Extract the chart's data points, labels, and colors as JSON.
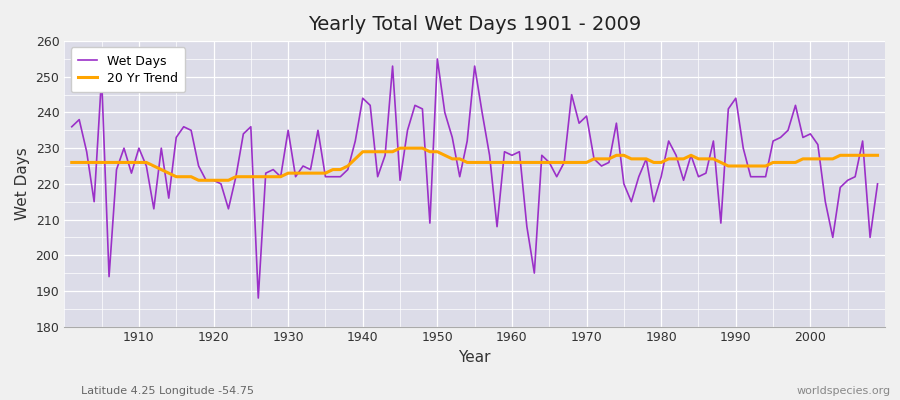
{
  "title": "Yearly Total Wet Days 1901 - 2009",
  "xlabel": "Year",
  "ylabel": "Wet Days",
  "subtitle_left": "Latitude 4.25 Longitude -54.75",
  "subtitle_right": "worldspecies.org",
  "wet_days_color": "#9B30C8",
  "trend_color": "#FFA500",
  "plot_bg_color": "#dcdce8",
  "fig_bg_color": "#f0f0f0",
  "ylim": [
    180,
    260
  ],
  "xlim": [
    1900,
    2010
  ],
  "years": [
    1901,
    1902,
    1903,
    1904,
    1905,
    1906,
    1907,
    1908,
    1909,
    1910,
    1911,
    1912,
    1913,
    1914,
    1915,
    1916,
    1917,
    1918,
    1919,
    1920,
    1921,
    1922,
    1923,
    1924,
    1925,
    1926,
    1927,
    1928,
    1929,
    1930,
    1931,
    1932,
    1933,
    1934,
    1935,
    1936,
    1937,
    1938,
    1939,
    1940,
    1941,
    1942,
    1943,
    1944,
    1945,
    1946,
    1947,
    1948,
    1949,
    1950,
    1951,
    1952,
    1953,
    1954,
    1955,
    1956,
    1957,
    1958,
    1959,
    1960,
    1961,
    1962,
    1963,
    1964,
    1965,
    1966,
    1967,
    1968,
    1969,
    1970,
    1971,
    1972,
    1973,
    1974,
    1975,
    1976,
    1977,
    1978,
    1979,
    1980,
    1981,
    1982,
    1983,
    1984,
    1985,
    1986,
    1987,
    1988,
    1989,
    1990,
    1991,
    1992,
    1993,
    1994,
    1995,
    1996,
    1997,
    1998,
    1999,
    2000,
    2001,
    2002,
    2003,
    2004,
    2005,
    2006,
    2007,
    2008,
    2009
  ],
  "wet_days": [
    236,
    238,
    229,
    215,
    250,
    194,
    224,
    230,
    223,
    230,
    225,
    213,
    230,
    216,
    233,
    236,
    235,
    225,
    221,
    221,
    220,
    213,
    222,
    234,
    236,
    188,
    223,
    224,
    222,
    235,
    222,
    225,
    224,
    235,
    222,
    222,
    222,
    224,
    232,
    244,
    242,
    222,
    228,
    253,
    221,
    235,
    242,
    241,
    209,
    255,
    240,
    233,
    222,
    232,
    253,
    240,
    228,
    208,
    229,
    228,
    229,
    208,
    195,
    228,
    226,
    222,
    226,
    245,
    237,
    239,
    227,
    225,
    226,
    237,
    220,
    215,
    222,
    227,
    215,
    222,
    232,
    228,
    221,
    228,
    222,
    223,
    232,
    209,
    241,
    244,
    230,
    222,
    222,
    222,
    232,
    233,
    235,
    242,
    233,
    234,
    231,
    215,
    205,
    219,
    221,
    222,
    232,
    205,
    220
  ],
  "trend_years": [
    1901,
    1902,
    1903,
    1904,
    1905,
    1906,
    1907,
    1908,
    1909,
    1910,
    1911,
    1912,
    1913,
    1914,
    1915,
    1916,
    1917,
    1918,
    1919,
    1920,
    1921,
    1922,
    1923,
    1924,
    1925,
    1926,
    1927,
    1928,
    1929,
    1930,
    1931,
    1932,
    1933,
    1934,
    1935,
    1936,
    1937,
    1938,
    1939,
    1940,
    1941,
    1942,
    1943,
    1944,
    1945,
    1946,
    1947,
    1948,
    1949,
    1950,
    1951,
    1952,
    1953,
    1954,
    1955,
    1956,
    1957,
    1958,
    1959,
    1960,
    1961,
    1962,
    1963,
    1964,
    1965,
    1966,
    1967,
    1968,
    1969,
    1970,
    1971,
    1972,
    1973,
    1974,
    1975,
    1976,
    1977,
    1978,
    1979,
    1980,
    1981,
    1982,
    1983,
    1984,
    1985,
    1986,
    1987,
    1988,
    1989,
    1990,
    1991,
    1992,
    1993,
    1994,
    1995,
    1996,
    1997,
    1998,
    1999,
    2000,
    2001,
    2002,
    2003,
    2004,
    2005,
    2006,
    2007,
    2008,
    2009
  ],
  "trend_values": [
    226,
    226,
    226,
    226,
    226,
    226,
    226,
    226,
    226,
    226,
    226,
    225,
    224,
    223,
    222,
    222,
    222,
    221,
    221,
    221,
    221,
    221,
    222,
    222,
    222,
    222,
    222,
    222,
    222,
    223,
    223,
    223,
    223,
    223,
    223,
    224,
    224,
    225,
    227,
    229,
    229,
    229,
    229,
    229,
    230,
    230,
    230,
    230,
    229,
    229,
    228,
    227,
    227,
    226,
    226,
    226,
    226,
    226,
    226,
    226,
    226,
    226,
    226,
    226,
    226,
    226,
    226,
    226,
    226,
    226,
    227,
    227,
    227,
    228,
    228,
    227,
    227,
    227,
    226,
    226,
    227,
    227,
    227,
    228,
    227,
    227,
    227,
    226,
    225,
    225,
    225,
    225,
    225,
    225,
    226,
    226,
    226,
    226,
    227,
    227,
    227,
    227,
    227,
    228,
    228,
    228,
    228,
    228,
    228
  ]
}
